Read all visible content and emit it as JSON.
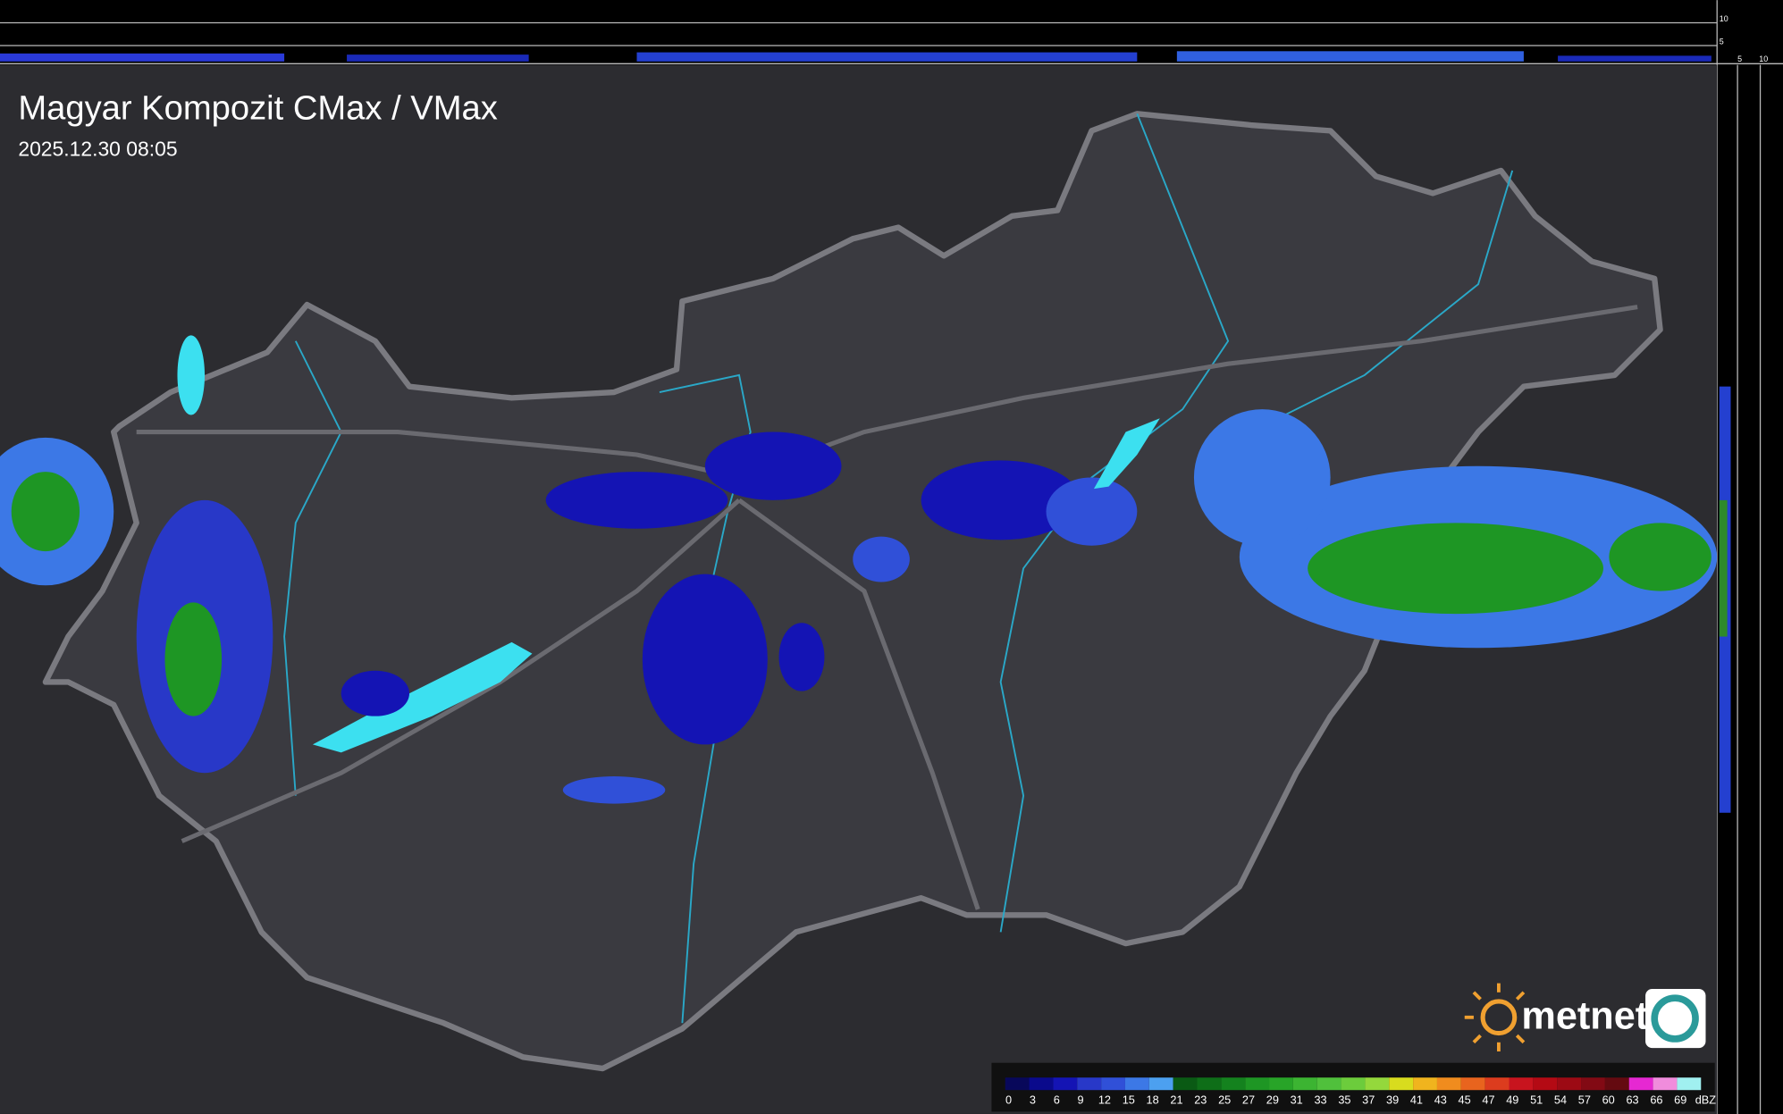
{
  "header": {
    "title": "Magyar Kompozit CMax / VMax",
    "timestamp": "2025.12.30 08:05"
  },
  "side_scale": {
    "top_ticks": [
      10,
      5
    ],
    "bottom_ticks": [
      5,
      10
    ]
  },
  "logo": {
    "brand": "metnet"
  },
  "legend": {
    "unit": "dBZ",
    "items": [
      {
        "value": 0,
        "color": "#08085a"
      },
      {
        "value": 3,
        "color": "#0a0a8c"
      },
      {
        "value": 6,
        "color": "#1414b4"
      },
      {
        "value": 9,
        "color": "#2838c8"
      },
      {
        "value": 12,
        "color": "#3050d8"
      },
      {
        "value": 15,
        "color": "#3c78e6"
      },
      {
        "value": 18,
        "color": "#4ca0f0"
      },
      {
        "value": 21,
        "color": "#0a5a14"
      },
      {
        "value": 23,
        "color": "#0e6e18"
      },
      {
        "value": 25,
        "color": "#14821e"
      },
      {
        "value": 27,
        "color": "#1e9624"
      },
      {
        "value": 29,
        "color": "#28a428"
      },
      {
        "value": 31,
        "color": "#3cb432"
      },
      {
        "value": 33,
        "color": "#50c03c"
      },
      {
        "value": 35,
        "color": "#6ccc3c"
      },
      {
        "value": 37,
        "color": "#94d83c"
      },
      {
        "value": 39,
        "color": "#d8dc1e"
      },
      {
        "value": 41,
        "color": "#f0b41e"
      },
      {
        "value": 43,
        "color": "#f08c1e"
      },
      {
        "value": 45,
        "color": "#e8641e"
      },
      {
        "value": 47,
        "color": "#dc3c1e"
      },
      {
        "value": 49,
        "color": "#c8141e"
      },
      {
        "value": 51,
        "color": "#b40a14"
      },
      {
        "value": 54,
        "color": "#9c0a14"
      },
      {
        "value": 57,
        "color": "#820a14"
      },
      {
        "value": 60,
        "color": "#640a10"
      },
      {
        "value": 63,
        "color": "#e628d2"
      },
      {
        "value": 66,
        "color": "#f08cdc"
      },
      {
        "value": 69,
        "color": "#a0f0f0"
      }
    ]
  }
}
